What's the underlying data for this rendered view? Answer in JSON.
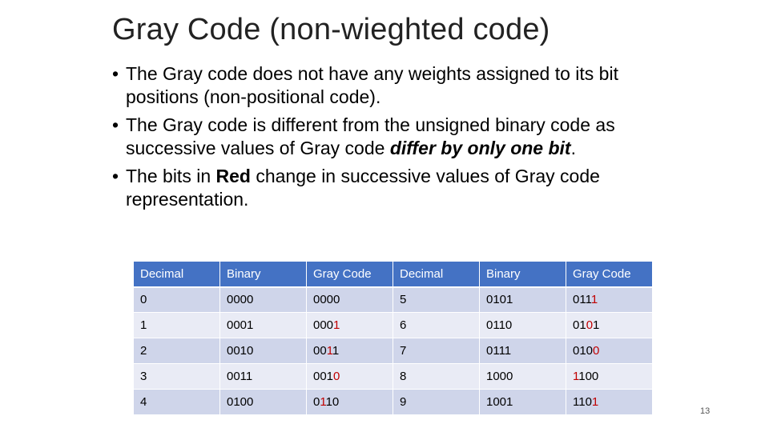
{
  "slide": {
    "title": "Gray Code (non-wieghted code)",
    "page_number": "13"
  },
  "bullets": [
    {
      "parts": [
        {
          "text": "The Gray code does not have any weights assigned to its bit positions (non-positional code).",
          "style": "normal"
        }
      ]
    },
    {
      "parts": [
        {
          "text": "The Gray code is different from the unsigned binary code as successive values of Gray code ",
          "style": "normal"
        },
        {
          "text": "differ by only one bit",
          "style": "bold-italic"
        },
        {
          "text": ".",
          "style": "normal"
        }
      ]
    },
    {
      "parts": [
        {
          "text": "The bits in ",
          "style": "normal"
        },
        {
          "text": "Red",
          "style": "bold"
        },
        {
          "text": " change in successive values of Gray code representation.",
          "style": "normal"
        }
      ]
    }
  ],
  "table": {
    "headers": [
      "Decimal",
      "Binary",
      "Gray Code",
      "Decimal",
      "Binary",
      "Gray Code"
    ],
    "rows": [
      {
        "dec1": "0",
        "bin1": "0000",
        "gray1": [
          {
            "t": "0000",
            "red": false
          }
        ],
        "dec2": "5",
        "bin2": "0101",
        "gray2": [
          {
            "t": "011",
            "red": false
          },
          {
            "t": "1",
            "red": true
          }
        ]
      },
      {
        "dec1": "1",
        "bin1": "0001",
        "gray1": [
          {
            "t": "000",
            "red": false
          },
          {
            "t": "1",
            "red": true
          }
        ],
        "dec2": "6",
        "bin2": "0110",
        "gray2": [
          {
            "t": "01",
            "red": false
          },
          {
            "t": "0",
            "red": true
          },
          {
            "t": "1",
            "red": false
          }
        ]
      },
      {
        "dec1": "2",
        "bin1": "0010",
        "gray1": [
          {
            "t": "00",
            "red": false
          },
          {
            "t": "1",
            "red": true
          },
          {
            "t": "1",
            "red": false
          }
        ],
        "dec2": "7",
        "bin2": "0111",
        "gray2": [
          {
            "t": "010",
            "red": false
          },
          {
            "t": "0",
            "red": true
          }
        ]
      },
      {
        "dec1": "3",
        "bin1": "0011",
        "gray1": [
          {
            "t": "001",
            "red": false
          },
          {
            "t": "0",
            "red": true
          }
        ],
        "dec2": "8",
        "bin2": "1000",
        "gray2": [
          {
            "t": "1",
            "red": true
          },
          {
            "t": "100",
            "red": false
          }
        ]
      },
      {
        "dec1": "4",
        "bin1": "0100",
        "gray1": [
          {
            "t": "0",
            "red": false
          },
          {
            "t": "1",
            "red": true
          },
          {
            "t": "10",
            "red": false
          }
        ],
        "dec2": "9",
        "bin2": "1001",
        "gray2": [
          {
            "t": "110",
            "red": false
          },
          {
            "t": "1",
            "red": true
          }
        ]
      }
    ]
  },
  "colors": {
    "header_bg": "#4472c4",
    "row_odd": "#cfd5ea",
    "row_even": "#e9ebf5",
    "changed_bit": "#c00000"
  }
}
